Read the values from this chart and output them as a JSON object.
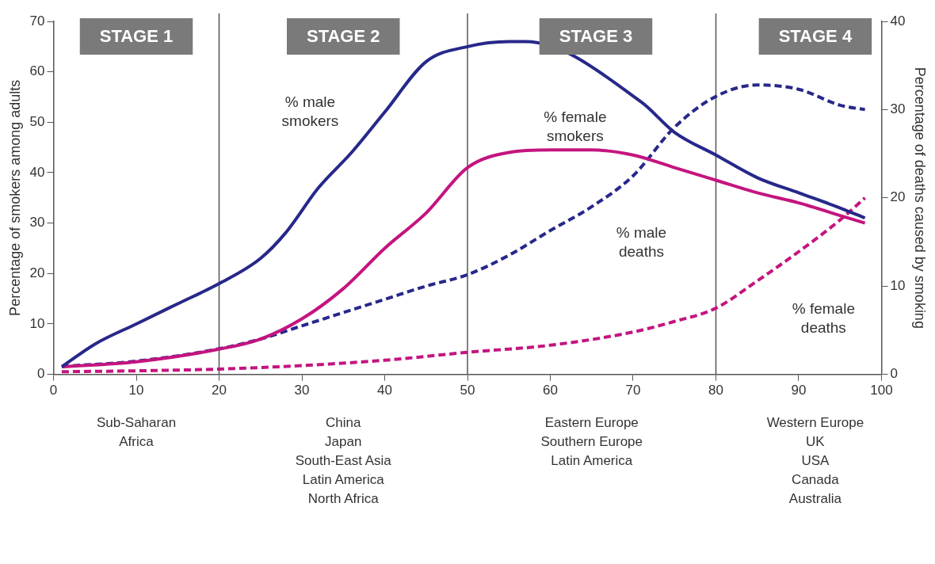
{
  "chart_data": {
    "type": "line",
    "ylabel": "Percentage of smokers among adults",
    "y2label": "Percentage of deaths caused by smoking",
    "xlim": [
      0,
      100
    ],
    "xticks": [
      0,
      10,
      20,
      30,
      40,
      50,
      60,
      70,
      80,
      90,
      100
    ],
    "ylim": [
      0,
      70
    ],
    "yticks": [
      0,
      10,
      20,
      30,
      40,
      50,
      60,
      70
    ],
    "y2lim": [
      0,
      40
    ],
    "y2ticks": [
      0,
      10,
      20,
      30,
      40
    ],
    "grid": false,
    "legend": false,
    "marker": "none",
    "series": [
      {
        "name": "% male smokers",
        "color": "#27288a",
        "line_style": "solid",
        "x": [
          1,
          5,
          10,
          15,
          20,
          25,
          28,
          32,
          36,
          40,
          45,
          50,
          55,
          57,
          71,
          75,
          80,
          85,
          90,
          95,
          98
        ],
        "values": [
          1.5,
          6,
          10,
          14,
          18,
          23,
          28,
          37,
          44,
          52,
          62,
          65,
          66,
          66,
          54,
          48,
          43.5,
          39,
          36,
          33,
          31
        ]
      },
      {
        "name": "% female smokers",
        "color": "#c4147f",
        "line_style": "solid",
        "x": [
          1,
          10,
          20,
          25,
          30,
          35,
          40,
          45,
          50,
          55,
          60,
          65,
          70,
          75,
          80,
          85,
          90,
          95,
          98
        ],
        "values": [
          1.5,
          2.5,
          5,
          7,
          11,
          17,
          25,
          32,
          41,
          44,
          44.5,
          44.5,
          43.5,
          41,
          38.5,
          36,
          34,
          31.5,
          30
        ]
      },
      {
        "name": "% male deaths",
        "color": "#27288a",
        "line_style": "dashed",
        "axis": "y2",
        "x": [
          1,
          10,
          20,
          25,
          30,
          35,
          40,
          45,
          50,
          55,
          60,
          65,
          70,
          75,
          80,
          85,
          90,
          95,
          98
        ],
        "values": [
          0.9,
          1.5,
          2.9,
          4,
          5.5,
          7,
          8.5,
          10,
          11.3,
          13.5,
          16.3,
          19,
          22.5,
          28,
          31.5,
          32.8,
          32.3,
          30.5,
          30
        ]
      },
      {
        "name": "% female deaths",
        "color": "#c4147f",
        "line_style": "dashed",
        "axis": "y2",
        "x": [
          1,
          10,
          20,
          30,
          40,
          50,
          60,
          70,
          75,
          80,
          85,
          90,
          95,
          98
        ],
        "values": [
          0.3,
          0.4,
          0.6,
          1,
          1.6,
          2.5,
          3.3,
          4.8,
          6,
          7.5,
          10.6,
          13.9,
          17.5,
          20
        ]
      }
    ],
    "ref_lines": [
      {
        "axis": "x",
        "value": 20,
        "color": "#555555"
      },
      {
        "axis": "x",
        "value": 50,
        "color": "#555555"
      },
      {
        "axis": "x",
        "value": 80,
        "color": "#555555"
      }
    ],
    "annotations": [
      "STAGE 1",
      "STAGE 2",
      "STAGE 3",
      "STAGE 4",
      "Sub-Saharan\nAfrica",
      "China\nJapan\nSouth-East Asia\nLatin America\nNorth Africa",
      "Eastern Europe\nSouthern Europe\nLatin America",
      "Western Europe\nUK\nUSA\nCanada\nAustralia"
    ]
  }
}
